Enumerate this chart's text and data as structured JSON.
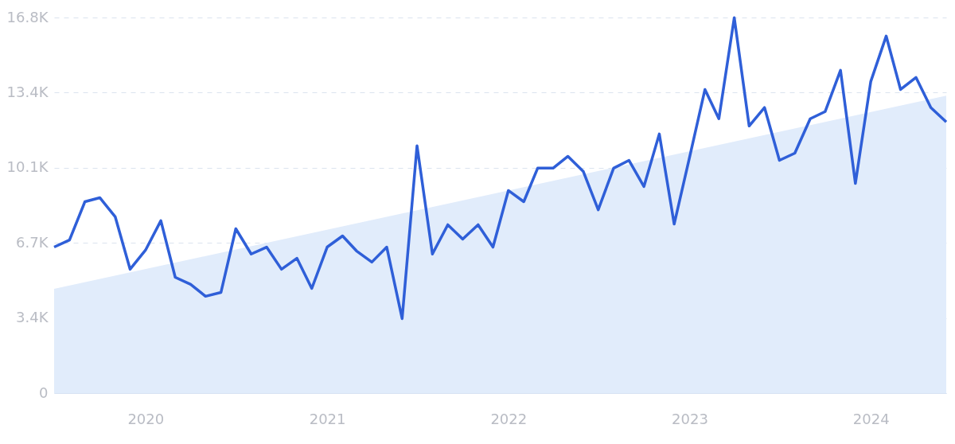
{
  "chart_data": {
    "type": "line",
    "x": [
      "2019-07",
      "2019-08",
      "2019-09",
      "2019-10",
      "2019-11",
      "2019-12",
      "2020-01",
      "2020-02",
      "2020-03",
      "2020-04",
      "2020-05",
      "2020-06",
      "2020-07",
      "2020-08",
      "2020-09",
      "2020-10",
      "2020-11",
      "2020-12",
      "2021-01",
      "2021-02",
      "2021-03",
      "2021-04",
      "2021-05",
      "2021-06",
      "2021-07",
      "2021-08",
      "2021-09",
      "2021-10",
      "2021-11",
      "2021-12",
      "2022-01",
      "2022-02",
      "2022-03",
      "2022-04",
      "2022-05",
      "2022-06",
      "2022-07",
      "2022-08",
      "2022-09",
      "2022-10",
      "2022-11",
      "2022-12",
      "2023-01",
      "2023-02",
      "2023-03",
      "2023-04",
      "2023-05",
      "2023-06",
      "2023-07",
      "2023-08",
      "2023-09",
      "2023-10",
      "2023-11",
      "2023-12",
      "2024-01",
      "2024-02",
      "2024-03",
      "2024-04",
      "2024-05",
      "2024-06"
    ],
    "series": [
      {
        "type": "area",
        "color": "#e1ecfb",
        "x": [
          "2019-07",
          "2024-06"
        ],
        "values": [
          4660,
          13300
        ]
      },
      {
        "color": "#2f5fd8",
        "values": [
          6530,
          6850,
          8560,
          8740,
          7890,
          5540,
          6390,
          7710,
          5180,
          4860,
          4330,
          4500,
          7350,
          6220,
          6530,
          5540,
          6030,
          4680,
          6530,
          7030,
          6360,
          5860,
          6530,
          3330,
          11060,
          6220,
          7530,
          6890,
          7530,
          6530,
          9060,
          8560,
          10060,
          10060,
          10590,
          9910,
          8200,
          10060,
          10410,
          9240,
          11590,
          7560,
          10550,
          13580,
          12270,
          16790,
          11950,
          12770,
          10410,
          10730,
          12270,
          12590,
          14440,
          9380,
          13940,
          15970,
          13580,
          14120,
          12770,
          12130
        ]
      }
    ],
    "xlim": [
      "2019-07",
      "2024-06"
    ],
    "xticks": [
      "2020",
      "2021",
      "2022",
      "2023",
      "2024"
    ],
    "ylim": [
      0,
      16800
    ],
    "yticks": [
      0,
      {
        "value": 3360,
        "label": "3.4K"
      },
      {
        "value": 6720,
        "label": "6.7K"
      },
      {
        "value": 10080,
        "label": "10.1K"
      },
      {
        "value": 13440,
        "label": "13.4K"
      },
      {
        "value": 16800,
        "label": "16.8K"
      }
    ],
    "grid": "y",
    "marker": "none",
    "line_style": "solid"
  }
}
